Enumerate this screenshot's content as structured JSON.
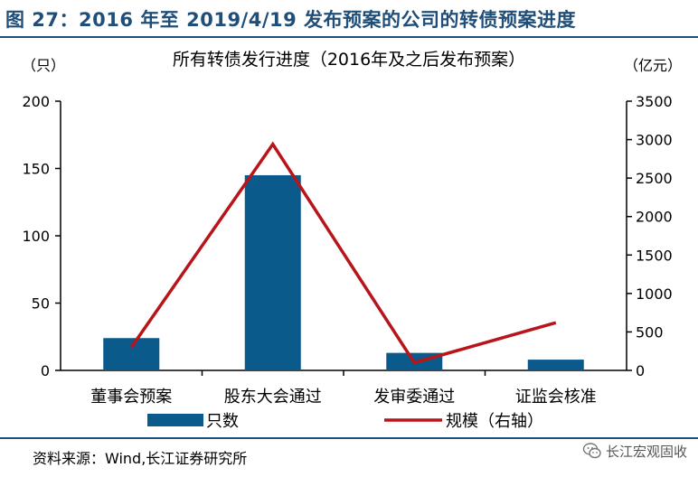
{
  "figure": {
    "caption": "图 27：2016 年至 2019/4/19 发布预案的公司的转债预案进度",
    "source": "资料来源：Wind,长江证券研究所",
    "watermark": "长江宏观固收",
    "watermark_icon": "wechat-icon"
  },
  "chart_data": {
    "type": "bar",
    "title": "所有转债发行进度（2016年及之后发布预案）",
    "left_unit": "（只）",
    "right_unit": "（亿元）",
    "categories": [
      "董事会预案",
      "股东大会通过",
      "发审委通过",
      "证监会核准"
    ],
    "y_left": {
      "min": 0,
      "max": 200,
      "ticks": [
        0,
        50,
        100,
        150,
        200
      ]
    },
    "y_right": {
      "min": 0,
      "max": 3500,
      "ticks": [
        0,
        500,
        1000,
        1500,
        2000,
        2500,
        3000,
        3500
      ]
    },
    "series": [
      {
        "name": "只数",
        "type": "bar",
        "axis": "left",
        "color": "#0b5a8c",
        "values": [
          24,
          145,
          13,
          8
        ]
      },
      {
        "name": "规模（右轴）",
        "type": "line",
        "axis": "right",
        "color": "#b8141a",
        "values": [
          300,
          2940,
          100,
          620
        ]
      }
    ],
    "grid": false,
    "legend_position": "bottom"
  }
}
